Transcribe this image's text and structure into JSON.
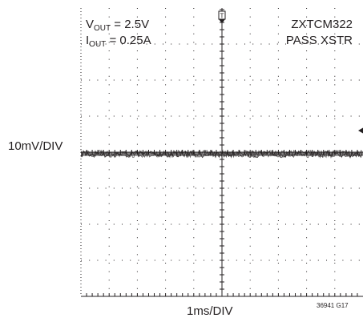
{
  "annotations": {
    "left": {
      "vout_sym": "V",
      "vout_sub": "OUT",
      "vout_val": " = 2.5V",
      "iout_sym": "I",
      "iout_sub": "OUT",
      "iout_val": " = 0.25A"
    },
    "right": {
      "line1": "ZXTCM322",
      "line2": "PASS XSTR"
    }
  },
  "figure_code": "36941 G17",
  "chart_data": {
    "type": "line",
    "title": "",
    "xlabel": "1ms/DIV",
    "ylabel": "10mV/DIV",
    "divisions": {
      "horizontal": 10,
      "vertical": 8
    },
    "grid": true,
    "series": [
      {
        "values_mv": [
          0,
          0,
          0,
          0,
          0,
          0,
          0,
          0,
          0,
          0,
          0
        ],
        "time_div": [
          0,
          1,
          2,
          3,
          4,
          5,
          6,
          7,
          8,
          9,
          10
        ],
        "noise_peak_to_peak_mv": 2
      }
    ],
    "trace_level_div": 4.05,
    "markers": {
      "trigger": "T",
      "ground_arrow": "right"
    },
    "colors": {
      "trace": "#231f20",
      "grid": "#231f20",
      "background": "#ffffff"
    }
  }
}
